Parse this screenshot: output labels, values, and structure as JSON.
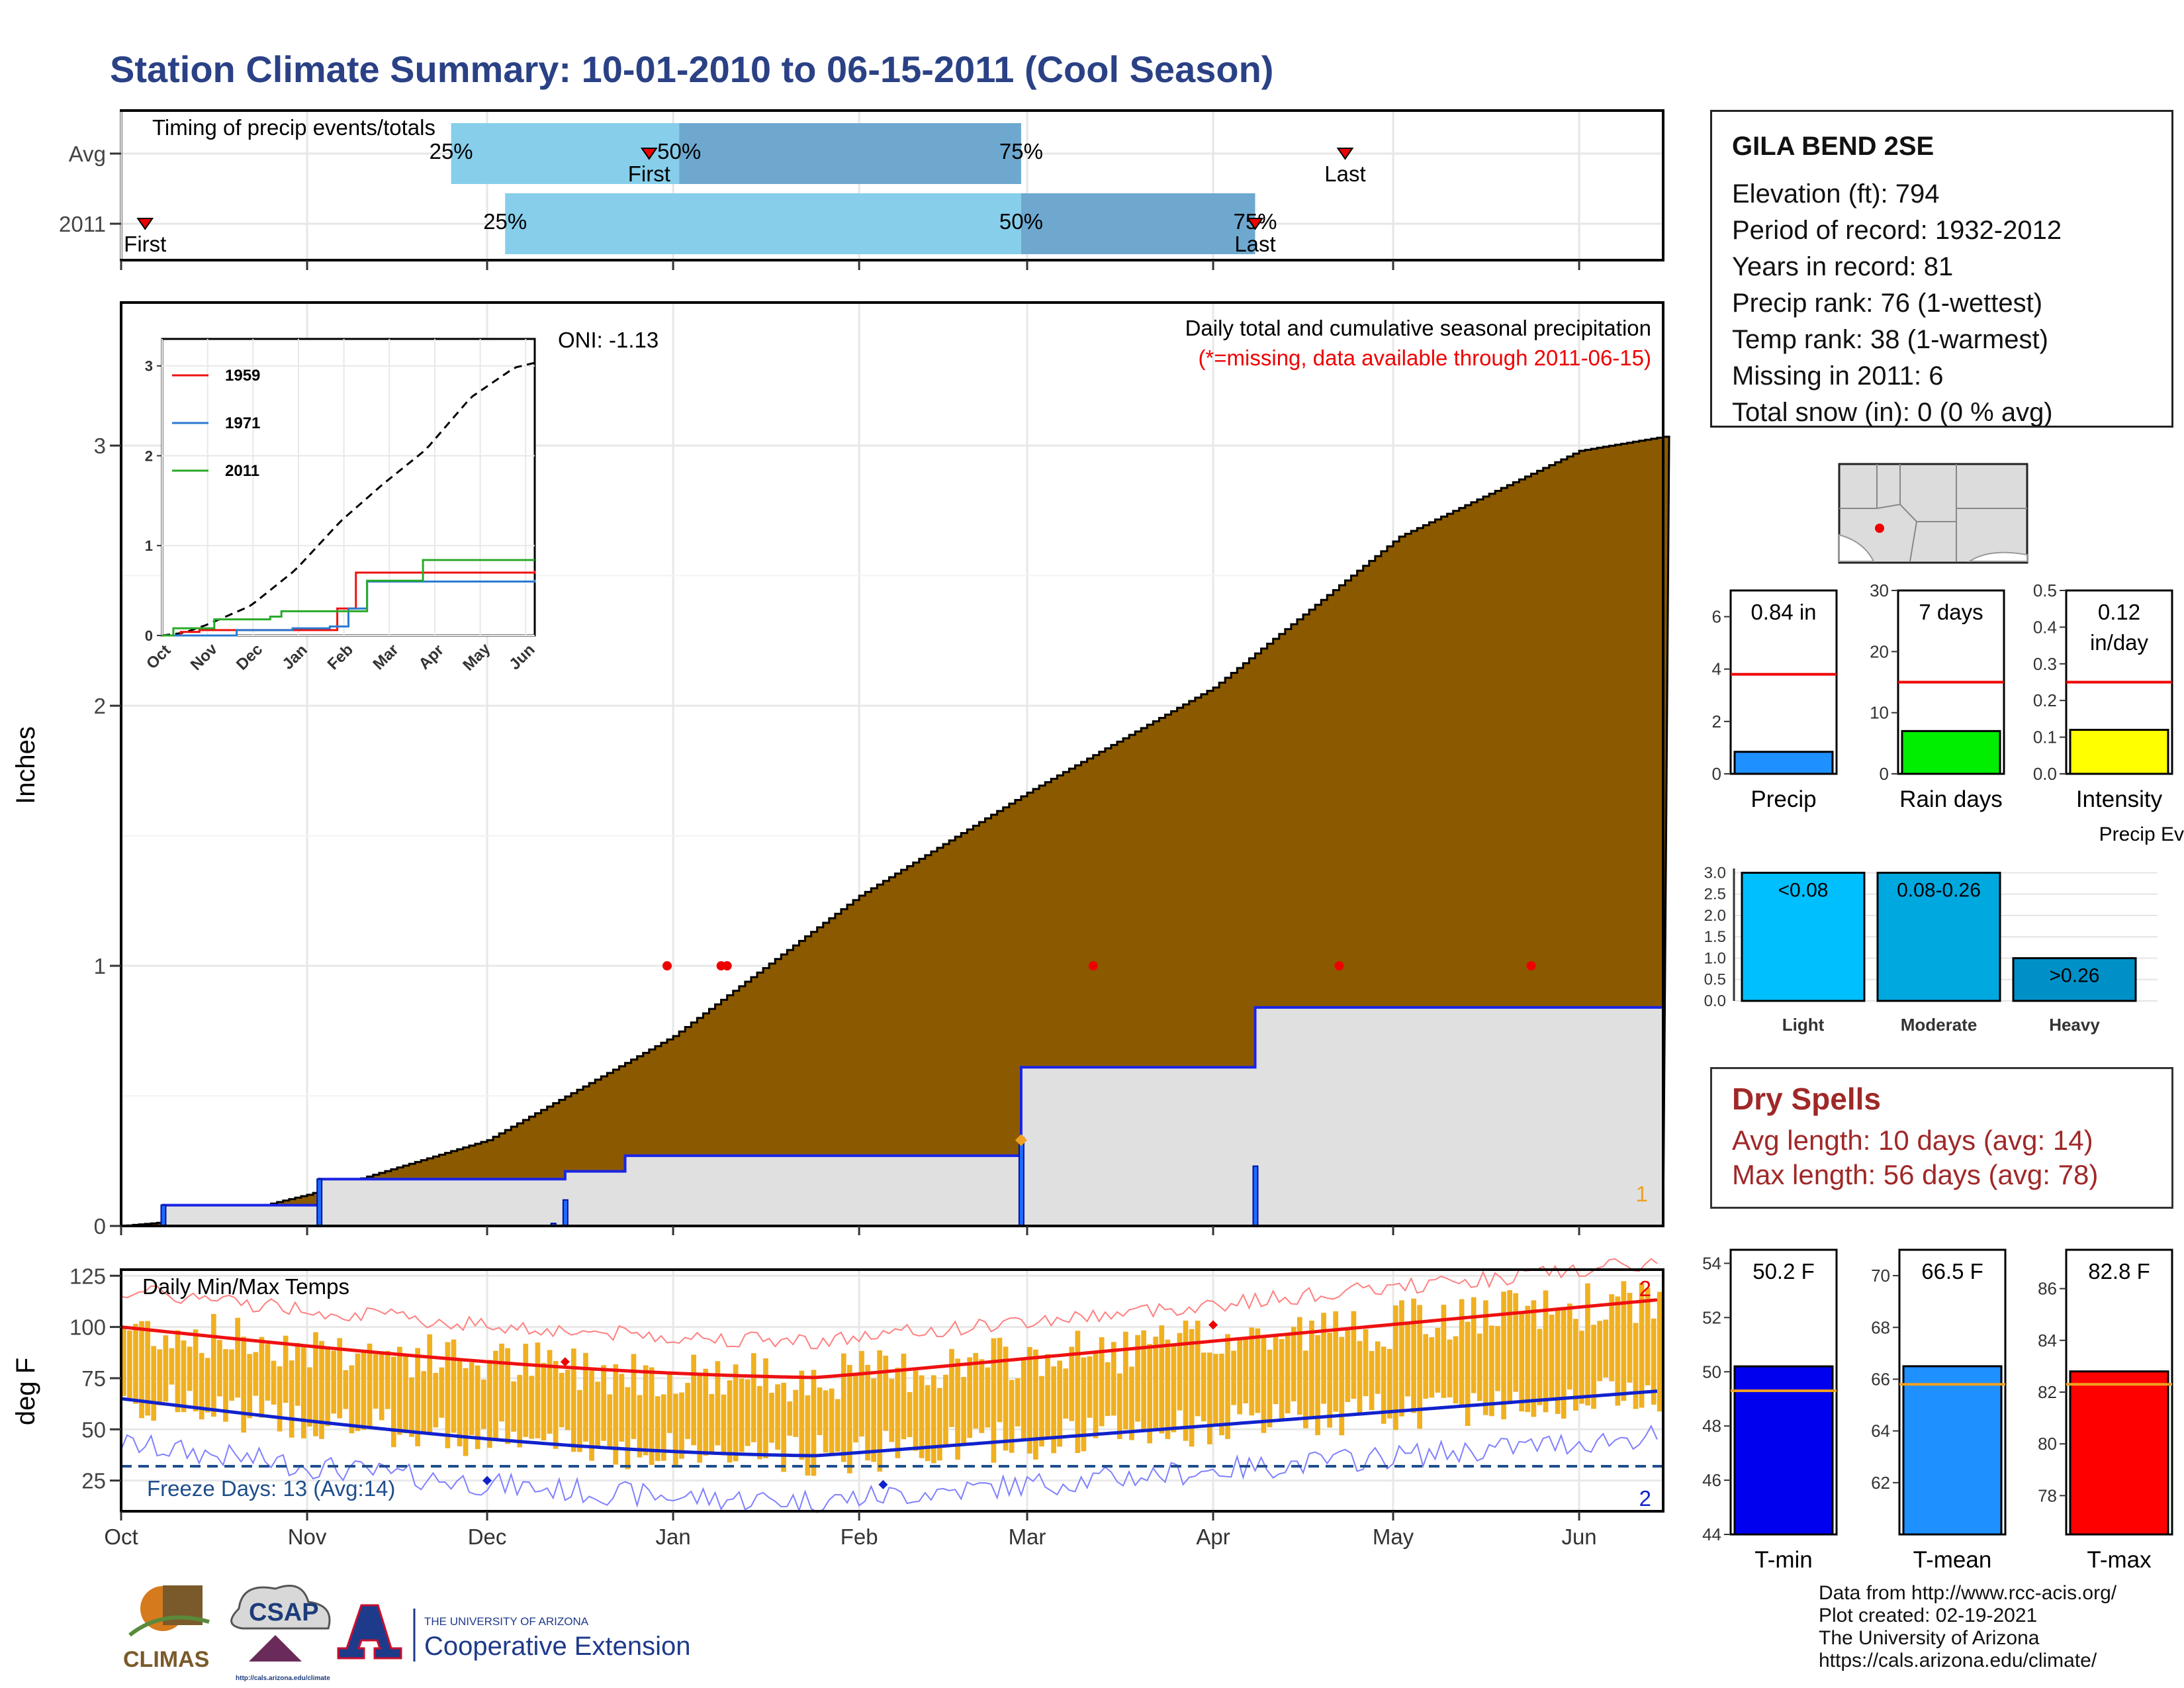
{
  "title": "Station Climate Summary: 10-01-2010 to 06-15-2011 (Cool Season)",
  "colors": {
    "title": "#2a4186",
    "precip_area": "#8b5a00",
    "normal_area": "#e0e0e0",
    "step_line": "#1a24e6",
    "band_light": "#87ceeb",
    "band_dark": "#6ea8cf",
    "temp_bars": "#f0b020",
    "tmax_line": "#ee1111",
    "tmin_line": "#1122cc",
    "freeze_line": "#1f4e8c",
    "dry_spell": "#a02828"
  },
  "timing_panel": {
    "label": "Timing of precip events/totals",
    "rows": [
      {
        "name": "Avg",
        "first_date": "2010-12-28",
        "last_date": "2011-04-23",
        "p25_date": "2010-11-25",
        "p50_date": "2011-01-02",
        "p75_date": "2011-02-28",
        "p25_label": "25%",
        "p50_label": "50%",
        "p75_label": "75%",
        "first_label": "First",
        "last_label": "Last"
      },
      {
        "name": "2011",
        "first_date": "2010-10-05",
        "last_date": "2011-04-08",
        "p25_date": "2010-12-04",
        "p50_date": "2011-02-28",
        "p75_date": "2011-04-08",
        "p25_label": "25%",
        "p50_label": "50%",
        "p75_label": "75%",
        "first_label": "First",
        "last_label": "Last"
      }
    ]
  },
  "station": {
    "name": "GILA BEND 2SE",
    "lines": [
      "Elevation (ft): 794",
      "Period of record: 1932-2012",
      "Years in record: 81",
      "Precip rank: 76 (1-wettest)",
      "Temp rank: 38 (1-warmest)",
      "Missing in 2011: 6",
      "Total snow (in): 0 (0 % avg)"
    ]
  },
  "main_precip": {
    "ylabel": "Inches",
    "title": "Daily total and cumulative seasonal precipitation",
    "subtitle": "(*=missing, data available through 2011-06-15)",
    "oni": "ONI: -1.13",
    "corner_label": "1",
    "yticks": [
      "0",
      "1",
      "2",
      "3"
    ],
    "ylim": [
      0,
      3.55
    ]
  },
  "x_axis": {
    "ticks": [
      {
        "label": "Oct",
        "date": "2010-10-01"
      },
      {
        "label": "Nov",
        "date": "2010-11-01"
      },
      {
        "label": "Dec",
        "date": "2010-12-01"
      },
      {
        "label": "Jan",
        "date": "2011-01-01"
      },
      {
        "label": "Feb",
        "date": "2011-02-01"
      },
      {
        "label": "Mar",
        "date": "2011-03-01"
      },
      {
        "label": "Apr",
        "date": "2011-04-01"
      },
      {
        "label": "May",
        "date": "2011-05-01"
      },
      {
        "label": "Jun",
        "date": "2011-06-01"
      }
    ],
    "start": "2010-10-01",
    "end": "2011-06-15"
  },
  "inset": {
    "legend": [
      "1959",
      "1971",
      "2011"
    ],
    "xticks": [
      "Oct",
      "Nov",
      "Dec",
      "Jan",
      "Feb",
      "Mar",
      "Apr",
      "May",
      "Jun"
    ],
    "yticks": [
      "0",
      "1",
      "2",
      "3"
    ]
  },
  "temps": {
    "ylabel": "deg F",
    "label": "Daily Min/Max Temps",
    "freeze_label": "Freeze Days: 13 (Avg:14)",
    "corner_top": "2",
    "corner_bottom": "2",
    "yticks": [
      "25",
      "50",
      "75",
      "100",
      "125"
    ],
    "ylim": [
      10,
      128
    ],
    "freeze_value": 32
  },
  "side_bars": [
    {
      "name": "Precip",
      "value": 0.84,
      "avg": 3.8,
      "label": "0.84 in",
      "label2": "",
      "ylim": [
        0,
        7
      ],
      "yticks": [
        "0",
        "2",
        "4",
        "6"
      ],
      "color": "#1e90ff"
    },
    {
      "name": "Rain days",
      "value": 7,
      "avg": 15,
      "label": "7 days",
      "label2": "",
      "ylim": [
        0,
        30
      ],
      "yticks": [
        "0",
        "10",
        "20",
        "30"
      ],
      "color": "#00ee00"
    },
    {
      "name": "Intensity",
      "value": 0.12,
      "avg": 0.25,
      "label": "0.12",
      "label2": "in/day",
      "ylim": [
        0,
        0.5
      ],
      "yticks": [
        "0.0",
        "0.1",
        "0.2",
        "0.3",
        "0.4",
        "0.5"
      ],
      "color": "#ffff00"
    }
  ],
  "events": {
    "title": "Precip Events (days)",
    "categories": [
      "Light",
      "Moderate",
      "Heavy"
    ],
    "values": [
      3,
      3,
      1
    ],
    "labels": [
      "<0.08",
      "0.08-0.26",
      ">0.26"
    ],
    "yticks": [
      "0.0",
      "0.5",
      "1.0",
      "1.5",
      "2.0",
      "2.5",
      "3.0"
    ],
    "colors": [
      "#00bfff",
      "#00a8e0",
      "#0090c8"
    ]
  },
  "dry_spells": {
    "title": "Dry Spells",
    "lines": [
      "Avg length: 10 days (avg: 14)",
      "Max length: 56 days (avg: 78)"
    ]
  },
  "temp_bars": [
    {
      "name": "T-min",
      "value": 50.2,
      "avg": 49.3,
      "label": "50.2 F",
      "ylim": [
        44,
        54.5
      ],
      "yticks": [
        "44",
        "46",
        "48",
        "50",
        "52",
        "54"
      ],
      "color": "#0000ee"
    },
    {
      "name": "T-mean",
      "value": 66.5,
      "avg": 65.8,
      "label": "66.5 F",
      "ylim": [
        60,
        71
      ],
      "yticks": [
        "62",
        "64",
        "66",
        "68",
        "70"
      ],
      "color": "#1e90ff"
    },
    {
      "name": "T-max",
      "value": 82.8,
      "avg": 82.3,
      "label": "82.8 F",
      "ylim": [
        76.5,
        87.5
      ],
      "yticks": [
        "78",
        "80",
        "82",
        "84",
        "86"
      ],
      "color": "#ff0000"
    }
  ],
  "logos": {
    "climas": "CLIMAS",
    "csap": "CSAP",
    "csap_url": "http://cals.arizona.edu/climate",
    "ua_small": "THE UNIVERSITY OF ARIZONA",
    "ua_big": "Cooperative Extension",
    "ua_mark": "A"
  },
  "credits": [
    "Data from http://www.rcc-acis.org/",
    "Plot created: 02-19-2021",
    "The University of Arizona",
    "https://cals.arizona.edu/climate/"
  ]
}
